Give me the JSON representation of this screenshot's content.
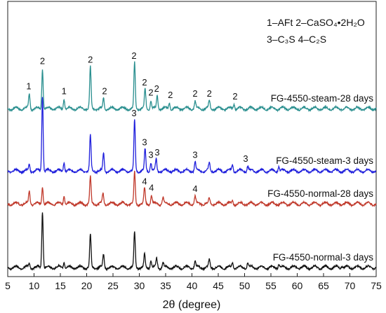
{
  "chart_data": {
    "type": "line",
    "title": "",
    "xlabel": "2θ (degree)",
    "ylabel": "",
    "xlim": [
      5,
      75
    ],
    "x_ticks": [
      5,
      10,
      15,
      20,
      25,
      30,
      35,
      40,
      45,
      50,
      55,
      60,
      65,
      70,
      75
    ],
    "grid": false,
    "legend_entries": [
      "1–AFt  2–CaSO₄•2H₂O",
      "3–C₃S  4–C₂S"
    ],
    "series": [
      {
        "name": "FG-4550-steam-28 days",
        "color": "#2a8f8f",
        "peaks": [
          {
            "x": 9.1,
            "h": 0.12
          },
          {
            "x": 11.6,
            "h": 0.32
          },
          {
            "x": 15.7,
            "h": 0.08
          },
          {
            "x": 20.7,
            "h": 0.33
          },
          {
            "x": 23.2,
            "h": 0.08
          },
          {
            "x": 29.1,
            "h": 0.36
          },
          {
            "x": 31.1,
            "h": 0.15
          },
          {
            "x": 32.2,
            "h": 0.07
          },
          {
            "x": 33.4,
            "h": 0.1
          },
          {
            "x": 35.7,
            "h": 0.05
          },
          {
            "x": 40.6,
            "h": 0.06
          },
          {
            "x": 43.3,
            "h": 0.06
          },
          {
            "x": 48.0,
            "h": 0.04
          }
        ],
        "peak_labels": [
          {
            "x": 9.0,
            "label": "1"
          },
          {
            "x": 11.6,
            "label": "2"
          },
          {
            "x": 15.7,
            "label": "1"
          },
          {
            "x": 20.7,
            "label": "2"
          },
          {
            "x": 23.4,
            "label": "2"
          },
          {
            "x": 29.0,
            "label": "2"
          },
          {
            "x": 31.0,
            "label": "2"
          },
          {
            "x": 32.2,
            "label": "2"
          },
          {
            "x": 33.3,
            "label": "2"
          },
          {
            "x": 35.9,
            "label": "2"
          },
          {
            "x": 40.6,
            "label": "2"
          },
          {
            "x": 43.3,
            "label": "2"
          },
          {
            "x": 48.2,
            "label": "2"
          }
        ]
      },
      {
        "name": "FG-4550-steam-3 days",
        "color": "#1f1fdc",
        "peaks": [
          {
            "x": 9.1,
            "h": 0.05
          },
          {
            "x": 11.6,
            "h": 0.6
          },
          {
            "x": 15.7,
            "h": 0.07
          },
          {
            "x": 20.7,
            "h": 0.28
          },
          {
            "x": 23.2,
            "h": 0.14
          },
          {
            "x": 29.1,
            "h": 0.4
          },
          {
            "x": 31.1,
            "h": 0.17
          },
          {
            "x": 32.2,
            "h": 0.07
          },
          {
            "x": 33.2,
            "h": 0.09
          },
          {
            "x": 40.6,
            "h": 0.07
          },
          {
            "x": 43.3,
            "h": 0.06
          },
          {
            "x": 47.7,
            "h": 0.05
          },
          {
            "x": 50.6,
            "h": 0.04
          },
          {
            "x": 56.5,
            "h": 0.04
          }
        ],
        "peak_labels": [
          {
            "x": 29.0,
            "label": "3"
          },
          {
            "x": 31.0,
            "label": "3"
          },
          {
            "x": 32.2,
            "label": "3"
          },
          {
            "x": 33.4,
            "label": "3"
          },
          {
            "x": 40.6,
            "label": "3"
          },
          {
            "x": 50.2,
            "label": "3"
          }
        ]
      },
      {
        "name": "FG-4550-normal-28 days",
        "color": "#c0392b",
        "peaks": [
          {
            "x": 9.1,
            "h": 0.1
          },
          {
            "x": 11.6,
            "h": 0.14
          },
          {
            "x": 15.7,
            "h": 0.07
          },
          {
            "x": 20.7,
            "h": 0.21
          },
          {
            "x": 23.1,
            "h": 0.08
          },
          {
            "x": 29.1,
            "h": 0.25
          },
          {
            "x": 31.0,
            "h": 0.12
          },
          {
            "x": 32.3,
            "h": 0.07
          },
          {
            "x": 34.5,
            "h": 0.05
          },
          {
            "x": 40.6,
            "h": 0.06
          },
          {
            "x": 43.3,
            "h": 0.04
          },
          {
            "x": 47.7,
            "h": 0.03
          }
        ],
        "peak_labels": [
          {
            "x": 31.0,
            "label": "4"
          },
          {
            "x": 32.3,
            "label": "4"
          },
          {
            "x": 40.6,
            "label": "4"
          }
        ]
      },
      {
        "name": "FG-4550-normal-3 days",
        "color": "#111111",
        "peaks": [
          {
            "x": 9.1,
            "h": 0.03
          },
          {
            "x": 11.6,
            "h": 0.45
          },
          {
            "x": 15.7,
            "h": 0.05
          },
          {
            "x": 20.7,
            "h": 0.26
          },
          {
            "x": 23.2,
            "h": 0.1
          },
          {
            "x": 29.1,
            "h": 0.28
          },
          {
            "x": 31.0,
            "h": 0.1
          },
          {
            "x": 32.2,
            "h": 0.06
          },
          {
            "x": 33.3,
            "h": 0.07
          },
          {
            "x": 34.5,
            "h": 0.04
          },
          {
            "x": 40.6,
            "h": 0.05
          },
          {
            "x": 43.3,
            "h": 0.06
          },
          {
            "x": 47.7,
            "h": 0.04
          },
          {
            "x": 50.6,
            "h": 0.04
          },
          {
            "x": 56.5,
            "h": 0.03
          },
          {
            "x": 68.5,
            "h": 0.02
          }
        ],
        "peak_labels": []
      }
    ]
  }
}
